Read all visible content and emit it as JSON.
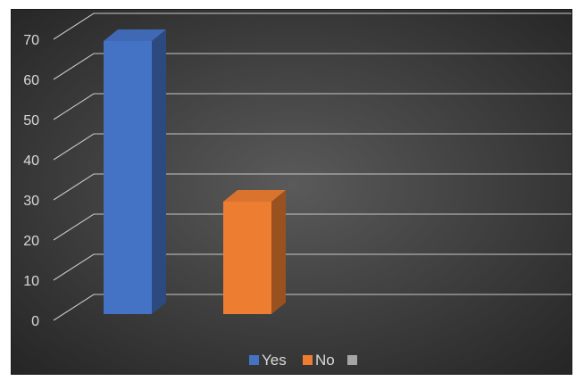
{
  "chart_data": {
    "type": "bar",
    "title": "",
    "xlabel": "",
    "ylabel": "",
    "categories": [
      "Yes",
      "No",
      ""
    ],
    "values": [
      70,
      30,
      0
    ],
    "ylim": [
      0,
      70
    ],
    "y_ticks": [
      0,
      10,
      20,
      30,
      40,
      50,
      60,
      70
    ],
    "grid": true,
    "legend": "bottom",
    "three_d": true,
    "colors": {
      "series": [
        "#4472c4",
        "#ed7d31",
        "#a5a5a5"
      ],
      "background_center": "#5a5a5a",
      "background_edge": "#262626",
      "gridline": "#c8c8c8",
      "text": "#d9d9d9"
    },
    "legend_entries": [
      {
        "label": "Yes",
        "color": "#4472c4"
      },
      {
        "label": "No",
        "color": "#ed7d31"
      },
      {
        "label": "",
        "color": "#a5a5a5"
      }
    ]
  }
}
